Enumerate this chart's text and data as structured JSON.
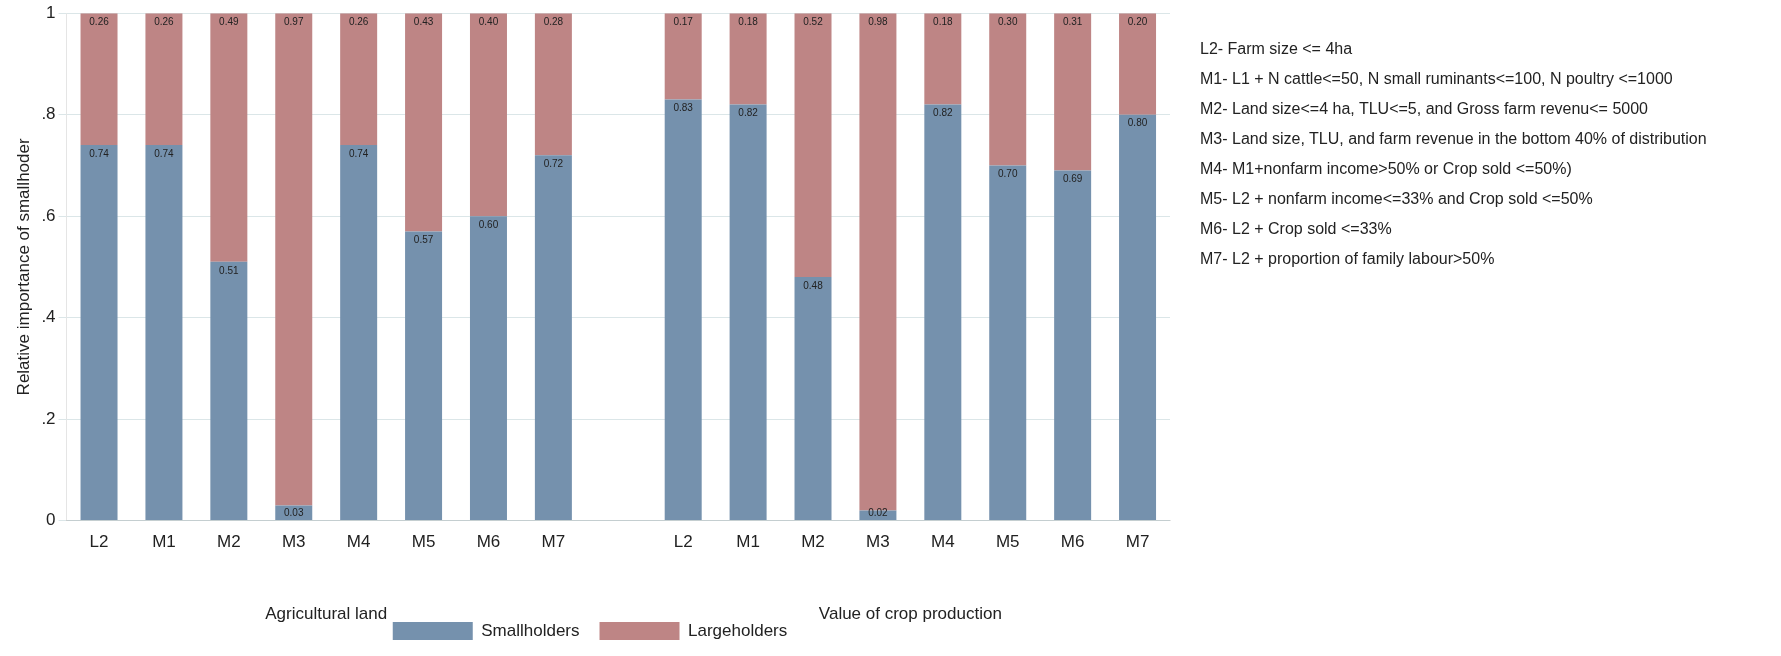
{
  "chart_data": {
    "type": "bar",
    "stacked": true,
    "categories": [
      "L2",
      "M1",
      "M2",
      "M3",
      "M4",
      "M5",
      "M6",
      "M7",
      null,
      "L2",
      "M1",
      "M2",
      "M3",
      "M4",
      "M5",
      "M6",
      "M7"
    ],
    "series": [
      {
        "name": "Smallholders",
        "color": "#7591ad",
        "values": [
          0.74,
          0.74,
          0.51,
          0.03,
          0.74,
          0.57,
          0.6,
          0.72,
          null,
          0.83,
          0.82,
          0.48,
          0.02,
          0.82,
          0.7,
          0.69,
          0.8
        ],
        "value_labels": [
          "0.74",
          "0.74",
          "0.51",
          "0.03",
          "0.74",
          "0.57",
          "0.60",
          "0.72",
          null,
          "0.83",
          "0.82",
          "0.48",
          "0.02",
          "0.82",
          "0.70",
          "0.69",
          "0.80"
        ]
      },
      {
        "name": "Largeholders",
        "color": "#be8585",
        "values": [
          0.26,
          0.26,
          0.49,
          0.97,
          0.26,
          0.43,
          0.4,
          0.28,
          null,
          0.17,
          0.18,
          0.52,
          0.98,
          0.18,
          0.3,
          0.31,
          0.2
        ],
        "value_labels": [
          "0.26",
          "0.26",
          "0.49",
          "0.97",
          "0.26",
          "0.43",
          "0.40",
          "0.28",
          null,
          "0.17",
          "0.18",
          "0.52",
          "0.98",
          "0.18",
          "0.30",
          "0.31",
          "0.20"
        ]
      }
    ],
    "ylabel": "Relative importance of smallhoder",
    "ylim": [
      0,
      1
    ],
    "yticks": [
      0,
      {
        "value": 0.2,
        "label": ".2"
      },
      {
        "value": 0.4,
        "label": ".4"
      },
      {
        "value": 0.6,
        "label": ".6"
      },
      {
        "value": 0.8,
        "label": ".8"
      },
      1
    ],
    "grid": "y",
    "legend": "bottom",
    "annotations": [
      "Agricultural land",
      "Value of crop production",
      "L2- Farm size <= 4ha",
      "M1- L1 + N cattle<=50,  N small ruminants<=100, N poultry <=1000",
      "M2- Land size<=4 ha, TLU<=5, and Gross farm revenu<= 5000",
      "M3- Land size, TLU, and farm revenue in the bottom 40% of distribution",
      "M4- M1+nonfarm income>50% or Crop sold <=50%)",
      "M5- L2 + nonfarm income<=33% and  Crop sold <=50%",
      "M6- L2 + Crop sold <=33%",
      "M7- L2 + proportion of family labour>50%"
    ]
  }
}
